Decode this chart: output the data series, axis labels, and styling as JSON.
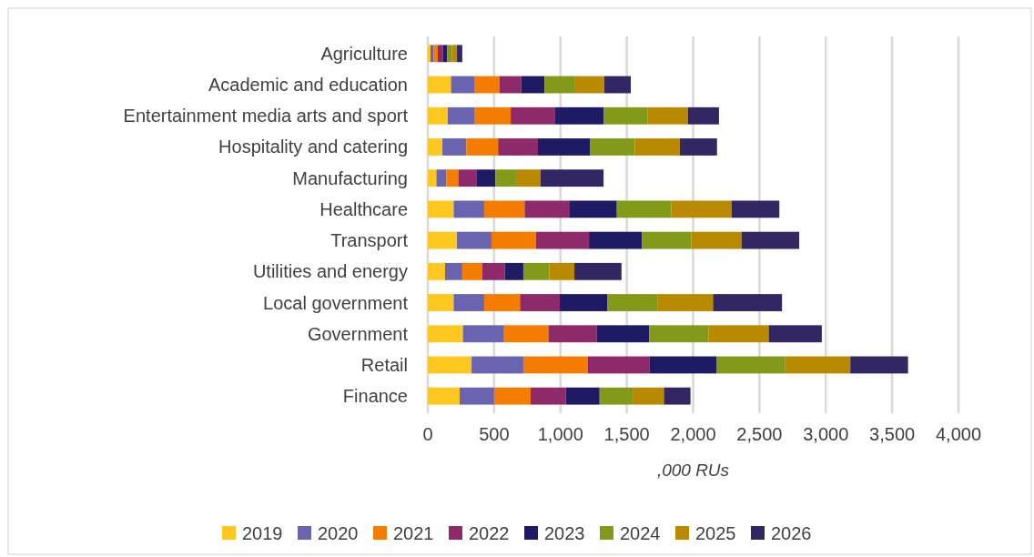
{
  "chart_data": {
    "type": "bar",
    "orientation": "horizontal",
    "stacked": true,
    "xlabel": ",000 RUs",
    "categories": [
      "Agriculture",
      "Academic and education",
      "Entertainment media arts and sport",
      "Hospitality and catering",
      "Manufacturing",
      "Healthcare",
      "Transport",
      "Utilities and energy",
      "Local government",
      "Government",
      "Retail",
      "Finance"
    ],
    "series": [
      {
        "name": "2019",
        "color": "#ffc820",
        "values": [
          20,
          175,
          150,
          110,
          65,
          195,
          220,
          130,
          195,
          265,
          330,
          240
        ]
      },
      {
        "name": "2020",
        "color": "#6a63b0",
        "values": [
          25,
          180,
          205,
          180,
          75,
          230,
          260,
          130,
          230,
          310,
          390,
          260
        ]
      },
      {
        "name": "2021",
        "color": "#f47c00",
        "values": [
          30,
          185,
          270,
          240,
          90,
          305,
          335,
          150,
          270,
          335,
          485,
          275
        ]
      },
      {
        "name": "2022",
        "color": "#8f2a6a",
        "values": [
          40,
          165,
          335,
          300,
          140,
          335,
          400,
          170,
          300,
          365,
          465,
          265
        ]
      },
      {
        "name": "2023",
        "color": "#1e1a64",
        "values": [
          30,
          175,
          365,
          395,
          140,
          360,
          400,
          140,
          360,
          395,
          505,
          255
        ]
      },
      {
        "name": "2024",
        "color": "#83991a",
        "values": [
          35,
          225,
          330,
          335,
          155,
          410,
          370,
          195,
          375,
          445,
          520,
          255
        ]
      },
      {
        "name": "2025",
        "color": "#b98a00",
        "values": [
          40,
          225,
          305,
          340,
          185,
          455,
          380,
          190,
          420,
          455,
          490,
          230
        ]
      },
      {
        "name": "2026",
        "color": "#322763",
        "values": [
          40,
          200,
          235,
          280,
          475,
          360,
          435,
          355,
          520,
          400,
          435,
          200
        ]
      }
    ],
    "xlim": [
      0,
      4000
    ],
    "xticks": [
      0,
      {
        "value": 500,
        "label": "500"
      },
      {
        "value": 1000,
        "label": "1,000"
      },
      {
        "value": 1500,
        "label": "1,500"
      },
      {
        "value": 2000,
        "label": "2,000"
      },
      {
        "value": 2500,
        "label": "2,500"
      },
      {
        "value": 3000,
        "label": "3,000"
      },
      {
        "value": 3500,
        "label": "3,500"
      },
      {
        "value": 4000,
        "label": "4,000"
      }
    ],
    "grid": "x",
    "legend": "bottom"
  }
}
